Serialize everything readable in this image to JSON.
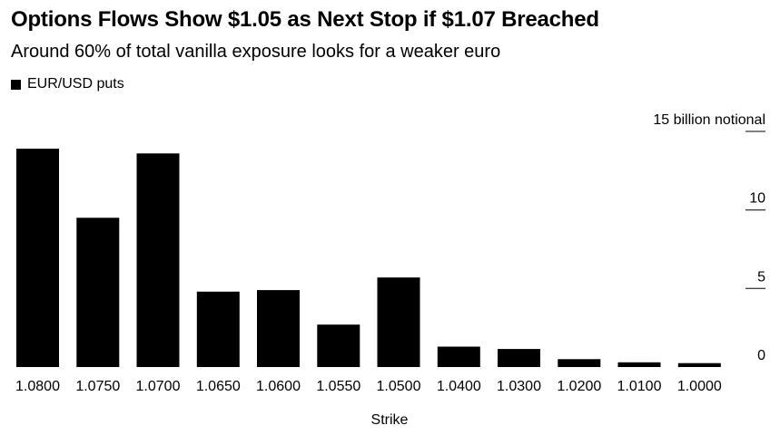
{
  "chart_data": {
    "type": "bar",
    "title": "Options Flows Show $1.05 as Next Stop if $1.07 Breached",
    "subtitle": "Around 60% of total vanilla exposure looks for a weaker euro",
    "legend": [
      "EUR/USD puts"
    ],
    "legend_position": "top-left",
    "xlabel": "Strike",
    "ylabel": "",
    "y_unit_label": "15 billion notional",
    "y_axis_side": "right",
    "ylim": [
      0,
      15
    ],
    "yticks": [
      0,
      5,
      10,
      15
    ],
    "ytick_labels": [
      "0",
      "5",
      "10",
      "15 billion notional"
    ],
    "grid": false,
    "bar_color": "#000000",
    "categories": [
      "1.0800",
      "1.0750",
      "1.0700",
      "1.0650",
      "1.0600",
      "1.0550",
      "1.0500",
      "1.0400",
      "1.0300",
      "1.0200",
      "1.0100",
      "1.0000"
    ],
    "series": [
      {
        "name": "EUR/USD puts",
        "values": [
          13.9,
          9.5,
          13.6,
          4.8,
          4.9,
          2.7,
          5.7,
          1.3,
          1.15,
          0.5,
          0.3,
          0.25
        ]
      }
    ]
  }
}
